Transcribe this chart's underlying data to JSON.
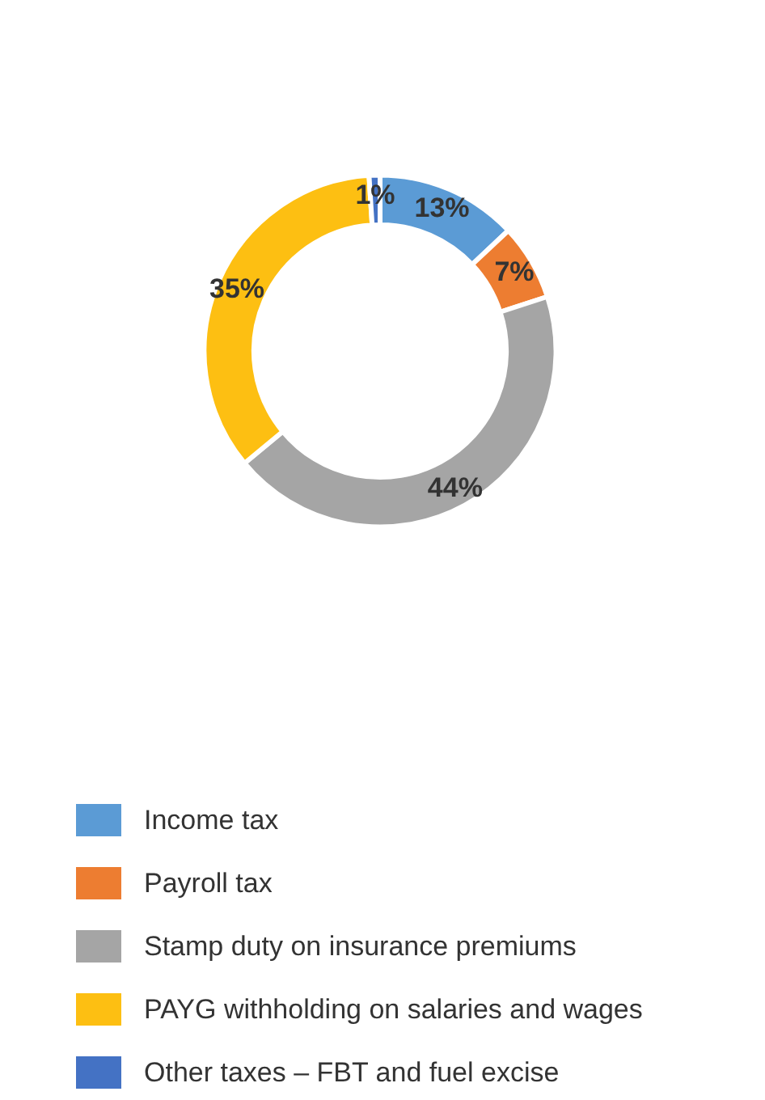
{
  "chart_data": {
    "type": "donut",
    "categories": [
      "Income tax",
      "Payroll tax",
      "Stamp duty on insurance premiums",
      "PAYG withholding on salaries and wages",
      "Other taxes – FBT and fuel excise"
    ],
    "values": [
      13,
      7,
      44,
      35,
      1
    ],
    "colors": [
      "#5b9bd5",
      "#ed7d31",
      "#a5a5a5",
      "#fdbf12",
      "#4472c4"
    ],
    "value_labels": [
      "13%",
      "7%",
      "44%",
      "35%",
      "1%"
    ],
    "legend": "bottom"
  }
}
